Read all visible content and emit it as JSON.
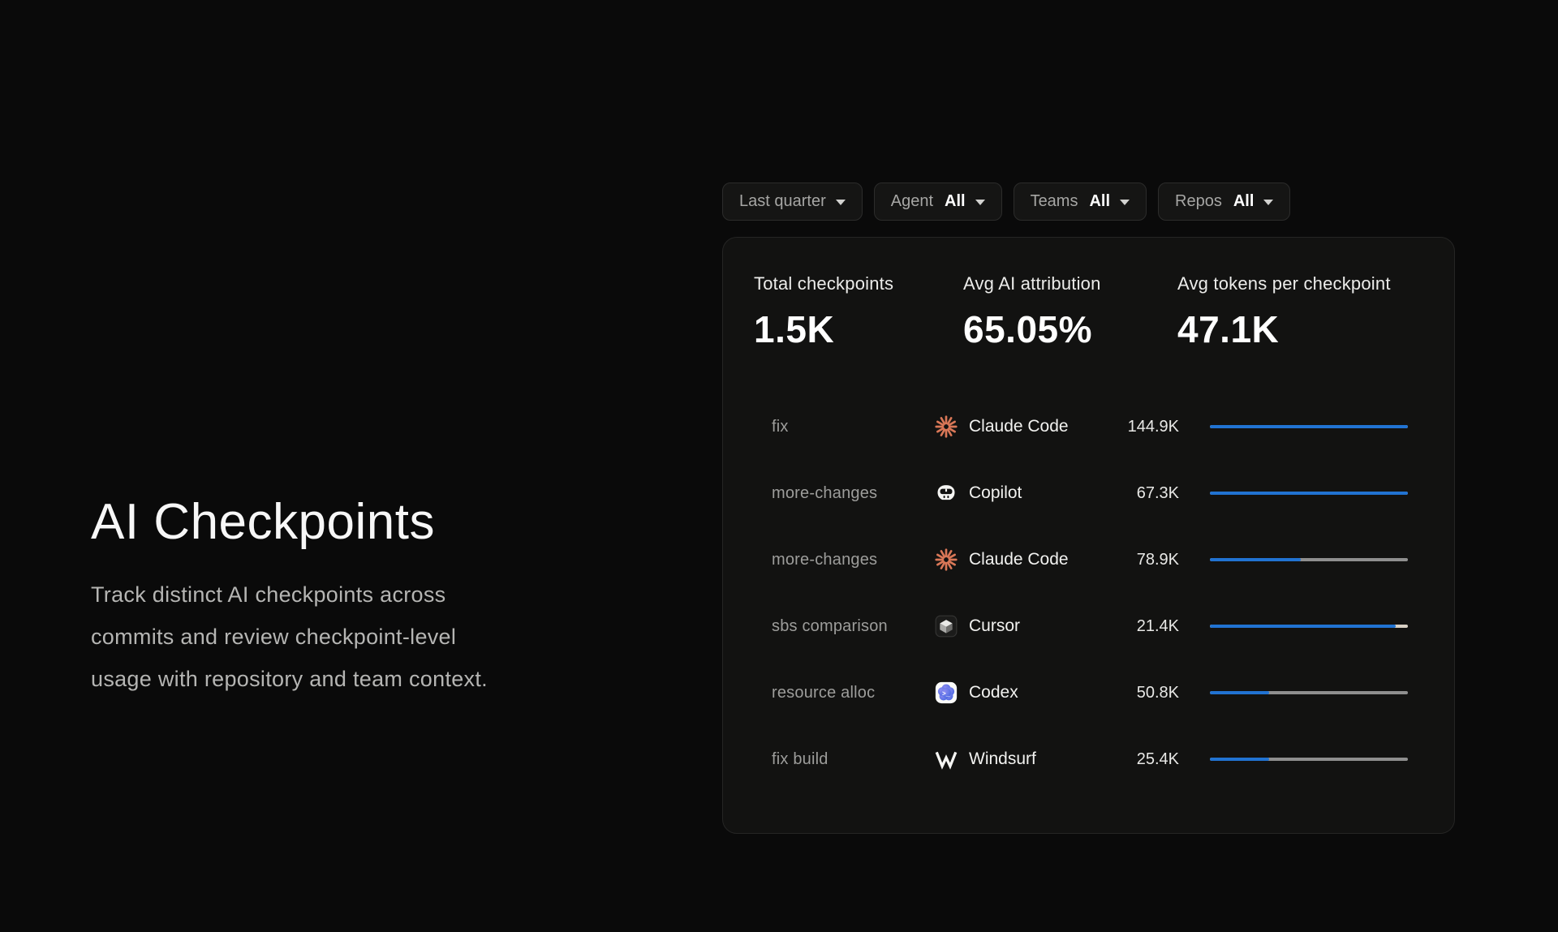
{
  "hero": {
    "title": "AI Checkpoints",
    "description": "Track distinct AI checkpoints across commits and review checkpoint-level usage with repository and team context."
  },
  "filters": {
    "time_range": {
      "label": "Last quarter"
    },
    "agent": {
      "label": "Agent",
      "value": "All"
    },
    "teams": {
      "label": "Teams",
      "value": "All"
    },
    "repos": {
      "label": "Repos",
      "value": "All"
    }
  },
  "stats": [
    {
      "label": "Total checkpoints",
      "value": "1.5K"
    },
    {
      "label": "Avg AI attribution",
      "value": "65.05%"
    },
    {
      "label": "Avg tokens per checkpoint",
      "value": "47.1K"
    }
  ],
  "checkpoints": {
    "rows": [
      {
        "name": "fix",
        "agent": "Claude Code",
        "agent_icon": "claude-code-icon",
        "tokens": "144.9K",
        "bar_fill_pct": 100,
        "bar_rest_color": "#8f8f8f"
      },
      {
        "name": "more-changes",
        "agent": "Copilot",
        "agent_icon": "copilot-icon",
        "tokens": "67.3K",
        "bar_fill_pct": 100,
        "bar_rest_color": "#8f8f8f"
      },
      {
        "name": "more-changes",
        "agent": "Claude Code",
        "agent_icon": "claude-code-icon",
        "tokens": "78.9K",
        "bar_fill_pct": 46,
        "bar_rest_color": "#8f8f8f"
      },
      {
        "name": "sbs comparison",
        "agent": "Cursor",
        "agent_icon": "cursor-icon",
        "tokens": "21.4K",
        "bar_fill_pct": 94,
        "bar_rest_color": "#d8d0c4"
      },
      {
        "name": "resource alloc",
        "agent": "Codex",
        "agent_icon": "codex-icon",
        "tokens": "50.8K",
        "bar_fill_pct": 30,
        "bar_rest_color": "#8f8f8f"
      },
      {
        "name": "fix build",
        "agent": "Windsurf",
        "agent_icon": "windsurf-icon",
        "tokens": "25.4K",
        "bar_fill_pct": 30,
        "bar_rest_color": "#8f8f8f"
      }
    ]
  },
  "colors": {
    "page_bg": "#0a0a0a",
    "panel_bg": "#121211",
    "bar_fill_blue": "#2173d2",
    "bar_rest_gray": "#8f8f8f",
    "claude_salmon": "#D97757"
  }
}
